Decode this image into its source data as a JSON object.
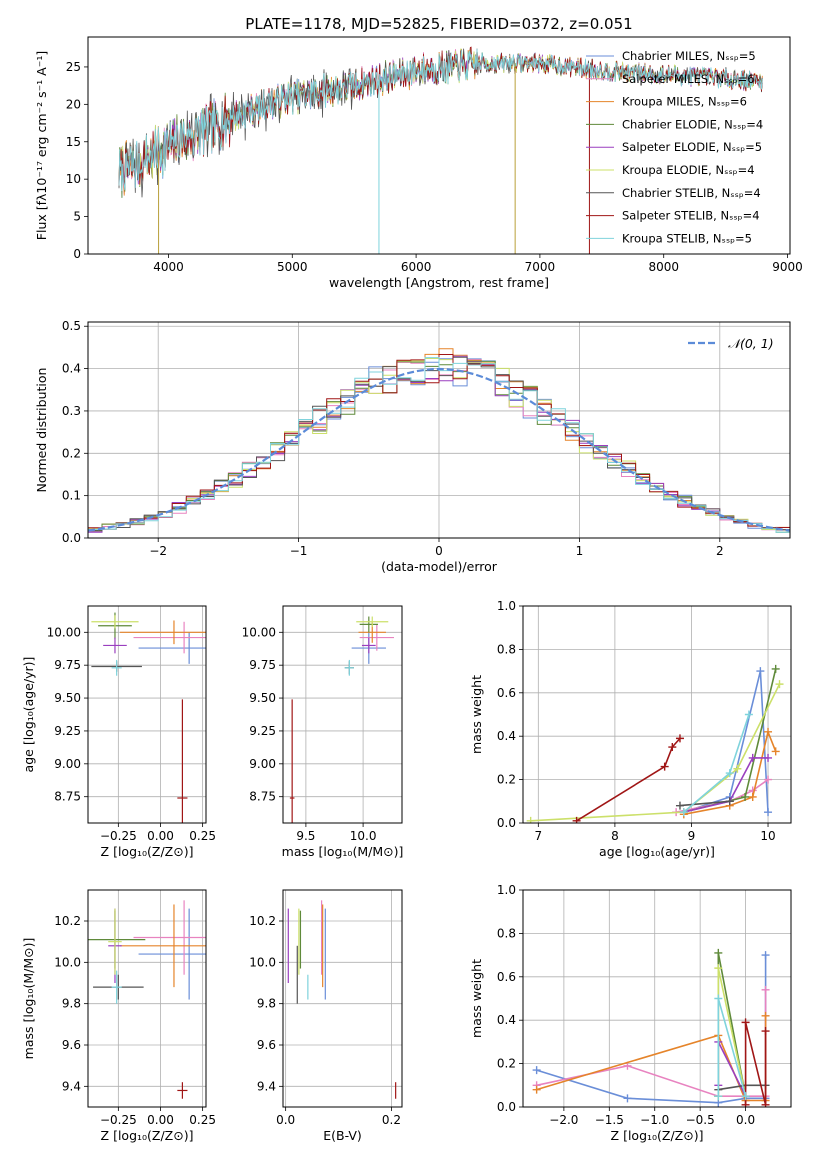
{
  "figure_title": "PLATE=1178, MJD=52825, FIBERID=0372, z=0.051",
  "palette": {
    "Chabrier MILES": "#6a8ed8",
    "Salpeter MILES": "#e883c0",
    "Kroupa MILES": "#e5842a",
    "Chabrier ELODIE": "#5f8a3a",
    "Salpeter ELODIE": "#9a3fbf",
    "Kroupa ELODIE": "#cce06a",
    "Chabrier STELIB": "#555555",
    "Salpeter STELIB": "#a01616",
    "Kroupa STELIB": "#7fd3dc",
    "normal": "#5b8bd8"
  },
  "chart_data": [
    {
      "id": "spectrum",
      "type": "line",
      "title": "PLATE=1178, MJD=52825, FIBERID=0372, z=0.051",
      "xlabel": "wavelength [Angstrom, rest frame]",
      "ylabel": "Flux [fλ10⁻¹⁷ erg cm⁻² s⁻¹ A⁻¹]",
      "xlim": [
        3350,
        9020
      ],
      "ylim": [
        0,
        29
      ],
      "xticks": [
        4000,
        5000,
        6000,
        7000,
        8000,
        9000
      ],
      "yticks": [
        0,
        5,
        10,
        15,
        20,
        25
      ],
      "grid": false,
      "legend": "upper-right",
      "x_range": [
        3600,
        8800
      ],
      "continuum": [
        [
          3600,
          11
        ],
        [
          3800,
          12.5
        ],
        [
          4000,
          14.5
        ],
        [
          4300,
          16.5
        ],
        [
          4700,
          19.5
        ],
        [
          5000,
          21
        ],
        [
          5500,
          22.5
        ],
        [
          6000,
          24.5
        ],
        [
          6500,
          25.5
        ],
        [
          7000,
          25.5
        ],
        [
          7500,
          24.5
        ],
        [
          8000,
          24
        ],
        [
          8500,
          23.5
        ],
        [
          8800,
          23
        ]
      ],
      "artifacts": [
        [
          3920,
          0
        ],
        [
          5700,
          0
        ],
        [
          6800,
          0
        ],
        [
          7400,
          0
        ]
      ],
      "series": [
        {
          "name": "Chabrier MILES, Nₛₛₚ=5",
          "model": "Chabrier MILES"
        },
        {
          "name": "Salpeter MILES, Nₛₛₚ=6",
          "model": "Salpeter MILES"
        },
        {
          "name": "Kroupa MILES, Nₛₛₚ=6",
          "model": "Kroupa MILES"
        },
        {
          "name": "Chabrier ELODIE, Nₛₛₚ=4",
          "model": "Chabrier ELODIE"
        },
        {
          "name": "Salpeter ELODIE, Nₛₛₚ=5",
          "model": "Salpeter ELODIE"
        },
        {
          "name": "Kroupa ELODIE, Nₛₛₚ=4",
          "model": "Kroupa ELODIE"
        },
        {
          "name": "Chabrier STELIB, Nₛₛₚ=4",
          "model": "Chabrier STELIB"
        },
        {
          "name": "Salpeter STELIB, Nₛₛₚ=4",
          "model": "Salpeter STELIB"
        },
        {
          "name": "Kroupa STELIB, Nₛₛₚ=5",
          "model": "Kroupa STELIB"
        }
      ]
    },
    {
      "id": "residuals",
      "type": "line",
      "xlabel": "(data-model)/error",
      "ylabel": "Normed distribution",
      "xlim": [
        -2.5,
        2.5
      ],
      "ylim": [
        0,
        0.51
      ],
      "xticks": [
        -2,
        -1,
        0,
        1,
        2
      ],
      "yticks": [
        0.0,
        0.1,
        0.2,
        0.3,
        0.4,
        0.5
      ],
      "grid": true,
      "legend": "upper-right",
      "normal_label": "𝒩(0, 1)",
      "bin_width": 0.1,
      "histograms": [
        "Chabrier MILES",
        "Salpeter MILES",
        "Kroupa MILES",
        "Chabrier ELODIE",
        "Salpeter ELODIE",
        "Kroupa ELODIE",
        "Chabrier STELIB",
        "Salpeter STELIB",
        "Kroupa STELIB"
      ]
    },
    {
      "id": "age_vs_Z",
      "type": "scatter",
      "xlabel": "Z [log₁₀(Z/Z⊙)]",
      "ylabel": "age  [log₁₀(age/yr)]",
      "xlim": [
        -0.43,
        0.27
      ],
      "ylim": [
        8.55,
        10.2
      ],
      "xticks": [
        -0.25,
        0.0,
        0.25
      ],
      "yticks": [
        8.75,
        9.0,
        9.25,
        9.5,
        9.75,
        10.0
      ],
      "grid": true,
      "points": [
        {
          "model": "Chabrier MILES",
          "x": 0.17,
          "y": 9.88,
          "xerr": 0.3,
          "yerr": 0.12
        },
        {
          "model": "Salpeter MILES",
          "x": 0.14,
          "y": 9.96,
          "xerr": 0.3,
          "yerr": 0.12
        },
        {
          "model": "Kroupa MILES",
          "x": 0.08,
          "y": 10.0,
          "xerr": 0.32,
          "yerr": 0.09
        },
        {
          "model": "Chabrier ELODIE",
          "x": -0.27,
          "y": 10.05,
          "xerr": 0.1,
          "yerr": 0.1
        },
        {
          "model": "Salpeter ELODIE",
          "x": -0.27,
          "y": 9.9,
          "xerr": 0.07,
          "yerr": 0.06
        },
        {
          "model": "Kroupa ELODIE",
          "x": -0.27,
          "y": 10.08,
          "xerr": 0.14,
          "yerr": 0.05
        },
        {
          "model": "Chabrier STELIB",
          "x": -0.26,
          "y": 9.74,
          "xerr": 0.15,
          "yerr": 0.04
        },
        {
          "model": "Salpeter STELIB",
          "x": 0.13,
          "y": 8.74,
          "xerr": 0.03,
          "yerr": 0.75
        },
        {
          "model": "Kroupa STELIB",
          "x": -0.26,
          "y": 9.73,
          "xerr": 0.03,
          "yerr": 0.06
        }
      ]
    },
    {
      "id": "age_vs_mass",
      "type": "scatter",
      "xlabel": "mass [log₁₀(M/M⊙)]",
      "ylabel": "",
      "xlim": [
        9.3,
        10.34
      ],
      "ylim": [
        8.55,
        10.2
      ],
      "xticks": [
        9.5,
        10.0
      ],
      "yticks": [
        8.75,
        9.0,
        9.25,
        9.5,
        9.75,
        10.0
      ],
      "grid": true,
      "points": [
        {
          "model": "Chabrier MILES",
          "x": 10.05,
          "y": 9.88,
          "xerr": 0.15,
          "yerr": 0.12
        },
        {
          "model": "Salpeter MILES",
          "x": 10.12,
          "y": 9.96,
          "xerr": 0.15,
          "yerr": 0.1
        },
        {
          "model": "Kroupa MILES",
          "x": 10.08,
          "y": 10.0,
          "xerr": 0.12,
          "yerr": 0.08
        },
        {
          "model": "Chabrier ELODIE",
          "x": 10.05,
          "y": 10.06,
          "xerr": 0.08,
          "yerr": 0.06
        },
        {
          "model": "Salpeter ELODIE",
          "x": 10.05,
          "y": 9.9,
          "xerr": 0.06,
          "yerr": 0.06
        },
        {
          "model": "Kroupa ELODIE",
          "x": 10.08,
          "y": 10.08,
          "xerr": 0.14,
          "yerr": 0.04
        },
        {
          "model": "Chabrier STELIB",
          "x": 9.88,
          "y": 9.73,
          "xerr": 0.04,
          "yerr": 0.05
        },
        {
          "model": "Salpeter STELIB",
          "x": 9.38,
          "y": 8.74,
          "xerr": 0.02,
          "yerr": 0.75
        },
        {
          "model": "Kroupa STELIB",
          "x": 9.88,
          "y": 9.73,
          "xerr": 0.04,
          "yerr": 0.06
        }
      ]
    },
    {
      "id": "weight_vs_age",
      "type": "line",
      "xlabel": "age  [log₁₀(age/yr)]",
      "ylabel": "mass weight",
      "xlim": [
        6.8,
        10.3
      ],
      "ylim": [
        0,
        1.0
      ],
      "xticks": [
        7,
        8,
        9,
        10
      ],
      "yticks": [
        0.0,
        0.2,
        0.4,
        0.6,
        0.8,
        1.0
      ],
      "grid": true,
      "series": [
        {
          "model": "Chabrier MILES",
          "x": [
            8.9,
            9.5,
            9.9,
            10.0
          ],
          "y": [
            0.05,
            0.12,
            0.7,
            0.05
          ]
        },
        {
          "model": "Salpeter MILES",
          "x": [
            8.8,
            9.5,
            9.8,
            10.0
          ],
          "y": [
            0.05,
            0.1,
            0.15,
            0.2
          ]
        },
        {
          "model": "Kroupa MILES",
          "x": [
            8.9,
            9.5,
            9.8,
            10.0,
            10.1
          ],
          "y": [
            0.04,
            0.08,
            0.12,
            0.42,
            0.33
          ]
        },
        {
          "model": "Chabrier ELODIE",
          "x": [
            8.9,
            9.7,
            10.1
          ],
          "y": [
            0.05,
            0.12,
            0.71
          ]
        },
        {
          "model": "Salpeter ELODIE",
          "x": [
            8.9,
            9.5,
            9.8,
            10.0
          ],
          "y": [
            0.05,
            0.1,
            0.3,
            0.3
          ]
        },
        {
          "model": "Kroupa ELODIE",
          "x": [
            6.9,
            8.9,
            9.6,
            10.15
          ],
          "y": [
            0.01,
            0.05,
            0.25,
            0.64
          ]
        },
        {
          "model": "Chabrier STELIB",
          "x": [
            8.85,
            9.5
          ],
          "y": [
            0.08,
            0.1
          ]
        },
        {
          "model": "Salpeter STELIB",
          "x": [
            7.5,
            8.65,
            8.75,
            8.85
          ],
          "y": [
            0.01,
            0.26,
            0.35,
            0.39
          ]
        },
        {
          "model": "Kroupa STELIB",
          "x": [
            8.9,
            9.5,
            9.75
          ],
          "y": [
            0.05,
            0.23,
            0.5
          ]
        }
      ]
    },
    {
      "id": "mass_vs_Z",
      "type": "scatter",
      "xlabel": "Z [log₁₀(Z/Z⊙)]",
      "ylabel": "mass [log₁₀(M/M⊙)]",
      "xlim": [
        -0.43,
        0.27
      ],
      "ylim": [
        9.3,
        10.35
      ],
      "xticks": [
        -0.25,
        0.0,
        0.25
      ],
      "yticks": [
        9.4,
        9.6,
        9.8,
        10.0,
        10.2
      ],
      "grid": true,
      "points": [
        {
          "model": "Chabrier MILES",
          "x": 0.17,
          "y": 10.04,
          "xerr": 0.3,
          "yerr": 0.22
        },
        {
          "model": "Salpeter MILES",
          "x": 0.14,
          "y": 10.12,
          "xerr": 0.3,
          "yerr": 0.18
        },
        {
          "model": "Kroupa MILES",
          "x": 0.08,
          "y": 10.08,
          "xerr": 0.32,
          "yerr": 0.2
        },
        {
          "model": "Chabrier ELODIE",
          "x": -0.27,
          "y": 10.11,
          "xerr": 0.18,
          "yerr": 0.14
        },
        {
          "model": "Salpeter ELODIE",
          "x": -0.27,
          "y": 10.08,
          "xerr": 0.04,
          "yerr": 0.18
        },
        {
          "model": "Kroupa ELODIE",
          "x": -0.27,
          "y": 10.1,
          "xerr": 0.04,
          "yerr": 0.16
        },
        {
          "model": "Chabrier STELIB",
          "x": -0.25,
          "y": 9.88,
          "xerr": 0.15,
          "yerr": 0.06
        },
        {
          "model": "Salpeter STELIB",
          "x": 0.13,
          "y": 9.38,
          "xerr": 0.03,
          "yerr": 0.04
        },
        {
          "model": "Kroupa STELIB",
          "x": -0.26,
          "y": 9.88,
          "xerr": 0.03,
          "yerr": 0.08
        }
      ]
    },
    {
      "id": "mass_vs_ebv",
      "type": "scatter",
      "xlabel": "E(B-V)",
      "ylabel": "",
      "xlim": [
        -0.005,
        0.22
      ],
      "ylim": [
        9.3,
        10.35
      ],
      "xticks": [
        0.0,
        0.2
      ],
      "yticks": [
        9.4,
        9.6,
        9.8,
        10.0,
        10.2
      ],
      "grid": true,
      "points": [
        {
          "model": "Chabrier MILES",
          "x": 0.075,
          "y": 10.04,
          "xerr": 0.0,
          "yerr": 0.22
        },
        {
          "model": "Salpeter MILES",
          "x": 0.068,
          "y": 10.12,
          "xerr": 0.0,
          "yerr": 0.18
        },
        {
          "model": "Kroupa MILES",
          "x": 0.07,
          "y": 10.08,
          "xerr": 0.0,
          "yerr": 0.2
        },
        {
          "model": "Chabrier ELODIE",
          "x": 0.028,
          "y": 10.11,
          "xerr": 0.0,
          "yerr": 0.14
        },
        {
          "model": "Salpeter ELODIE",
          "x": 0.005,
          "y": 10.08,
          "xerr": 0.0,
          "yerr": 0.18
        },
        {
          "model": "Kroupa ELODIE",
          "x": 0.025,
          "y": 10.1,
          "xerr": 0.0,
          "yerr": 0.16
        },
        {
          "model": "Chabrier STELIB",
          "x": 0.022,
          "y": 9.94,
          "xerr": 0.0,
          "yerr": 0.14
        },
        {
          "model": "Salpeter STELIB",
          "x": 0.208,
          "y": 9.38,
          "xerr": 0.0,
          "yerr": 0.04
        },
        {
          "model": "Kroupa STELIB",
          "x": 0.042,
          "y": 9.88,
          "xerr": 0.0,
          "yerr": 0.06
        }
      ]
    },
    {
      "id": "weight_vs_Z",
      "type": "line",
      "xlabel": "Z [log₁₀(Z/Z⊙)]",
      "ylabel": "mass weight",
      "xlim": [
        -2.45,
        0.5
      ],
      "ylim": [
        0,
        1.0
      ],
      "xticks": [
        -2.0,
        -1.5,
        -1.0,
        -0.5,
        0.0
      ],
      "yticks": [
        0.0,
        0.2,
        0.4,
        0.6,
        0.8,
        1.0
      ],
      "grid": true,
      "series": [
        {
          "model": "Chabrier MILES",
          "x": [
            -2.3,
            -1.3,
            -0.3,
            0.0,
            0.22,
            0.22
          ],
          "y": [
            0.17,
            0.04,
            0.02,
            0.04,
            0.04,
            0.7
          ]
        },
        {
          "model": "Salpeter MILES",
          "x": [
            -2.3,
            -1.3,
            -0.3,
            0.0,
            0.22,
            0.22
          ],
          "y": [
            0.1,
            0.19,
            0.05,
            0.05,
            0.05,
            0.54
          ]
        },
        {
          "model": "Kroupa MILES",
          "x": [
            -2.3,
            -0.3,
            0.0,
            0.22,
            0.22
          ],
          "y": [
            0.08,
            0.33,
            0.03,
            0.03,
            0.42
          ]
        },
        {
          "model": "Chabrier ELODIE",
          "x": [
            -0.3,
            -0.3,
            0.0
          ],
          "y": [
            0.05,
            0.71,
            0.05
          ]
        },
        {
          "model": "Salpeter ELODIE",
          "x": [
            -0.3,
            -0.3,
            0.0
          ],
          "y": [
            0.1,
            0.3,
            0.05
          ]
        },
        {
          "model": "Kroupa ELODIE",
          "x": [
            -0.3,
            -0.3,
            0.0
          ],
          "y": [
            0.05,
            0.64,
            0.05
          ]
        },
        {
          "model": "Chabrier STELIB",
          "x": [
            -0.3,
            0.0,
            0.22
          ],
          "y": [
            0.08,
            0.1,
            0.1
          ]
        },
        {
          "model": "Salpeter STELIB",
          "x": [
            0.0,
            0.0,
            0.22,
            0.22
          ],
          "y": [
            0.01,
            0.39,
            0.01,
            0.35
          ]
        },
        {
          "model": "Kroupa STELIB",
          "x": [
            -0.3,
            -0.3,
            0.0
          ],
          "y": [
            0.05,
            0.5,
            0.05
          ]
        }
      ]
    }
  ]
}
